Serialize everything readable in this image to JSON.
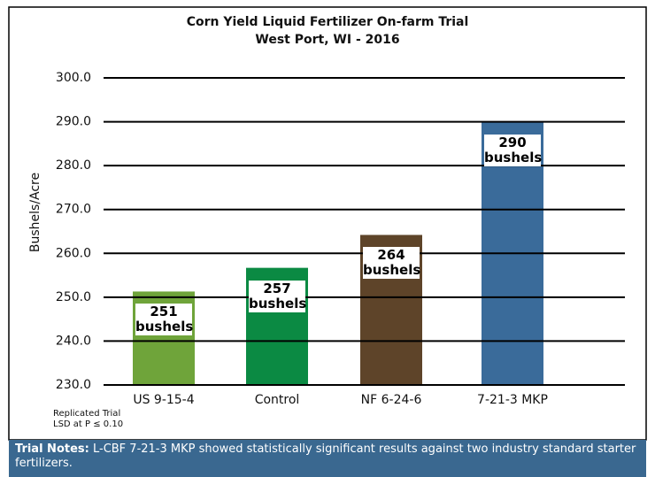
{
  "chart_data": {
    "type": "bar",
    "title": "Corn Yield Liquid Fertilizer On-farm Trial",
    "subtitle": "West Port, WI - 2016",
    "y_label": "Bushels/Acre",
    "categories": [
      "US 9-15-4",
      "Control",
      "NF 6-24-6",
      "7-21-3 MKP"
    ],
    "values": [
      251.3,
      256.7,
      264.2,
      290.0
    ],
    "value_labels": [
      "251 bushels",
      "257 bushels",
      "264 bushels",
      "290 bushels"
    ],
    "colors": [
      "#6fa43a",
      "#0b8a43",
      "#5e4429",
      "#3a6b9a"
    ],
    "ylim": [
      230,
      300
    ],
    "yticks": [
      {
        "value": 230,
        "label": "230.0"
      },
      {
        "value": 240,
        "label": "240.0"
      },
      {
        "value": 250,
        "label": "250.0"
      },
      {
        "value": 260,
        "label": "260.0"
      },
      {
        "value": 270,
        "label": "270.0"
      },
      {
        "value": 280,
        "label": "280.0"
      },
      {
        "value": 290,
        "label": "290.0"
      },
      {
        "value": 300,
        "label": "300.0"
      }
    ],
    "grid": true,
    "annotations": [
      "Replicated Trial",
      "LSD at P ≤ 0.10"
    ]
  },
  "notes": {
    "label": "Trial Notes:",
    "text": "L-CBF 7-21-3 MKP showed statistically significant results against two industry standard starter fertilizers."
  }
}
